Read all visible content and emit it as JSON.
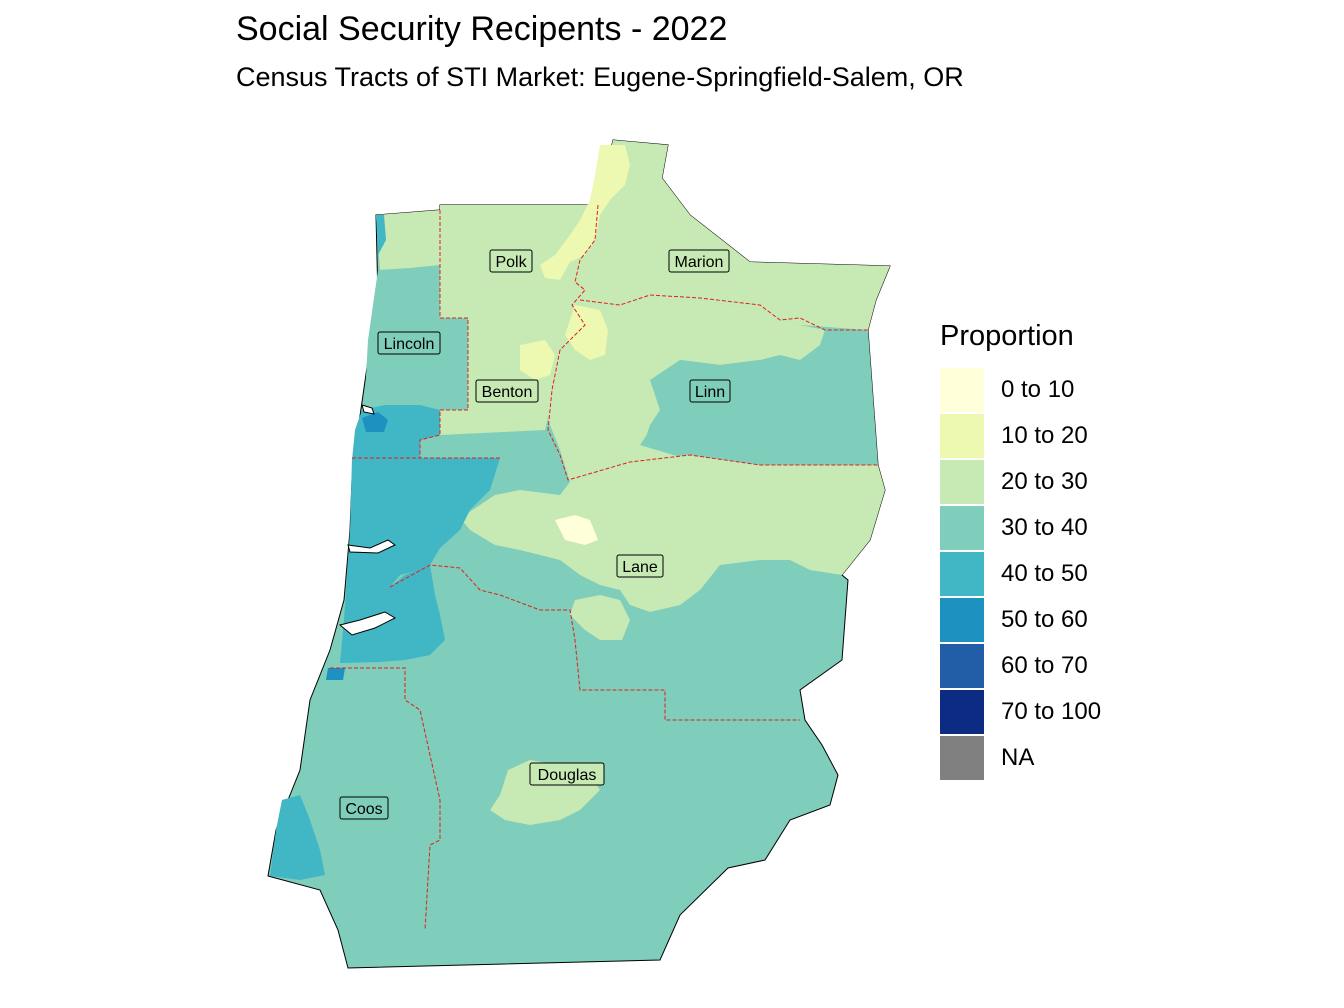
{
  "title": "Social Security Recipents - 2022",
  "subtitle": "Census Tracts of STI Market: Eugene-Springfield-Salem, OR",
  "legend": {
    "title": "Proportion",
    "items": [
      {
        "label": "0 to 10",
        "color": "#ffffd9"
      },
      {
        "label": "10 to 20",
        "color": "#edf8b1"
      },
      {
        "label": "20 to 30",
        "color": "#c7e9b4"
      },
      {
        "label": "30 to 40",
        "color": "#7fcdbb"
      },
      {
        "label": "40 to 50",
        "color": "#41b6c4"
      },
      {
        "label": "50 to 60",
        "color": "#1d91c0"
      },
      {
        "label": "60 to 70",
        "color": "#225ea8"
      },
      {
        "label": "70 to 100",
        "color": "#0c2c84"
      },
      {
        "label": "NA",
        "color": "#808080"
      }
    ]
  },
  "counties": [
    {
      "name": "Polk"
    },
    {
      "name": "Marion"
    },
    {
      "name": "Lincoln"
    },
    {
      "name": "Benton"
    },
    {
      "name": "Linn"
    },
    {
      "name": "Lane"
    },
    {
      "name": "Douglas"
    },
    {
      "name": "Coos"
    }
  ],
  "colors": {
    "county_boundary": "#e0201c",
    "outline": "#000000"
  }
}
